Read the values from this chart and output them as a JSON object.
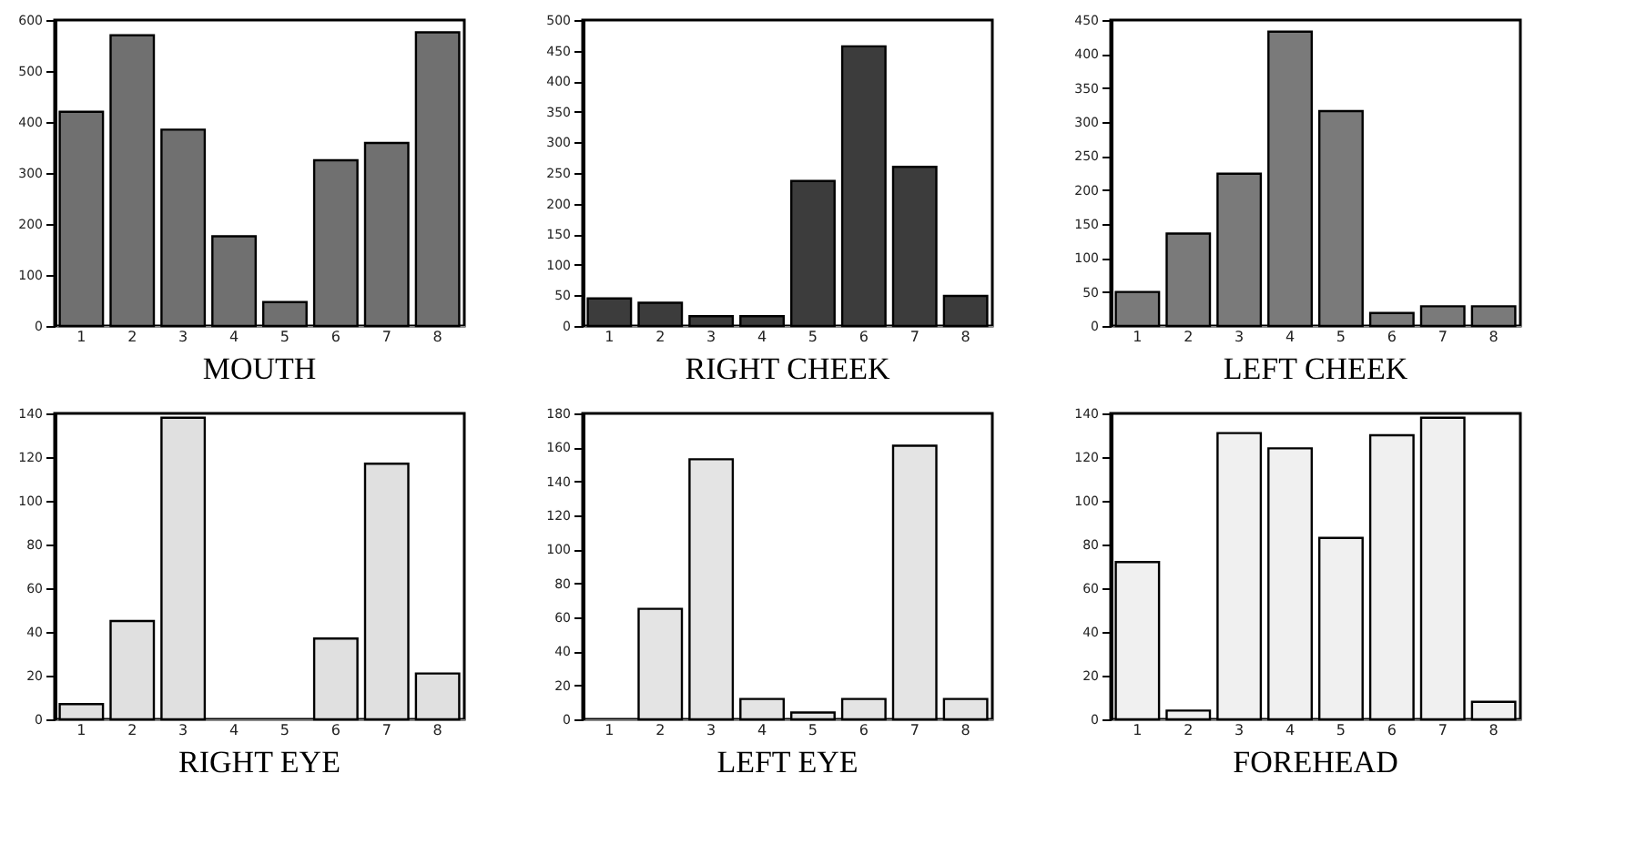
{
  "chart_data": [
    {
      "type": "bar",
      "title": "MOUTH",
      "categories": [
        "1",
        "2",
        "3",
        "4",
        "5",
        "6",
        "7",
        "8"
      ],
      "values": [
        420,
        570,
        385,
        176,
        47,
        325,
        359,
        576
      ],
      "color": "#707070",
      "ylim": [
        0,
        600
      ],
      "yticks": [
        0,
        100,
        200,
        300,
        400,
        500,
        600
      ]
    },
    {
      "type": "bar",
      "title": "RIGHT CHEEK",
      "categories": [
        "1",
        "2",
        "3",
        "4",
        "5",
        "6",
        "7",
        "8"
      ],
      "values": [
        45,
        38,
        16,
        16,
        237,
        457,
        260,
        49
      ],
      "color": "#3c3c3c",
      "ylim": [
        0,
        500
      ],
      "yticks": [
        0,
        50,
        100,
        150,
        200,
        250,
        300,
        350,
        400,
        450,
        500
      ]
    },
    {
      "type": "bar",
      "title": "LEFT CHEEK",
      "categories": [
        "1",
        "2",
        "3",
        "4",
        "5",
        "6",
        "7",
        "8"
      ],
      "values": [
        50,
        136,
        224,
        433,
        316,
        19,
        29,
        29
      ],
      "color": "#7a7a7a",
      "ylim": [
        0,
        450
      ],
      "yticks": [
        0,
        50,
        100,
        150,
        200,
        250,
        300,
        350,
        400,
        450
      ]
    },
    {
      "type": "bar",
      "title": "RIGHT EYE",
      "categories": [
        "1",
        "2",
        "3",
        "4",
        "5",
        "6",
        "7",
        "8"
      ],
      "values": [
        7,
        45,
        138,
        null,
        null,
        37,
        117,
        21
      ],
      "color": "#e0e0e0",
      "ylim": [
        0,
        140
      ],
      "yticks": [
        0,
        20,
        40,
        60,
        80,
        100,
        120,
        140
      ]
    },
    {
      "type": "bar",
      "title": "LEFT EYE",
      "categories": [
        "1",
        "2",
        "3",
        "4",
        "5",
        "6",
        "7",
        "8"
      ],
      "values": [
        null,
        65,
        153,
        12,
        4,
        12,
        161,
        12
      ],
      "color": "#e4e4e4",
      "ylim": [
        0,
        180
      ],
      "yticks": [
        0,
        20,
        40,
        60,
        80,
        100,
        120,
        140,
        160,
        180
      ]
    },
    {
      "type": "bar",
      "title": "FOREHEAD",
      "categories": [
        "1",
        "2",
        "3",
        "4",
        "5",
        "6",
        "7",
        "8"
      ],
      "values": [
        72,
        4,
        131,
        124,
        83,
        130,
        138,
        8
      ],
      "color": "#f0f0f0",
      "ylim": [
        0,
        140
      ],
      "yticks": [
        0,
        20,
        40,
        60,
        80,
        100,
        120,
        140
      ]
    }
  ]
}
